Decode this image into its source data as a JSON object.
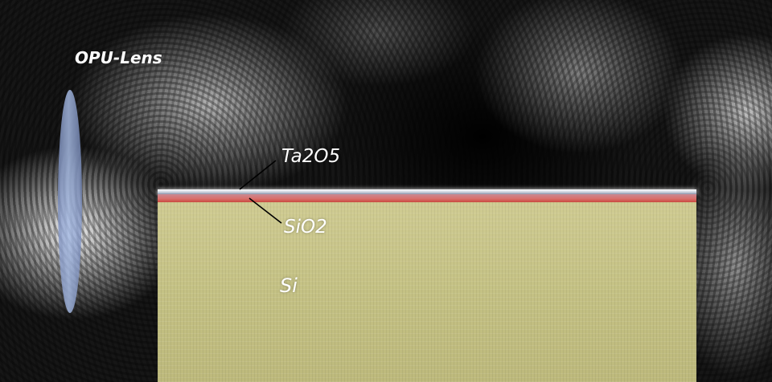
{
  "labels": {
    "lens": "OPU-Lens",
    "ta2o5": "Ta2O5",
    "sio2": "SiO2",
    "si": "Si"
  },
  "colors": {
    "lens": "#9fb2e0",
    "ta2o5": "#ffffff",
    "sio2": "#d9706c",
    "si": "#c8c488"
  }
}
